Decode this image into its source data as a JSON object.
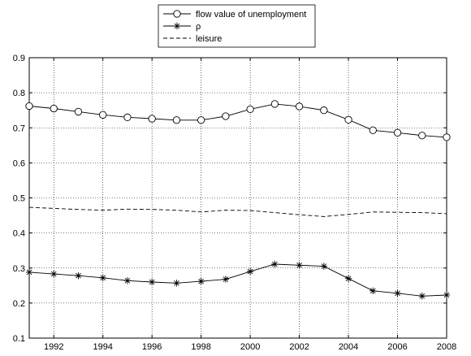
{
  "chart_data": {
    "type": "line",
    "title": "",
    "xlabel": "",
    "ylabel": "",
    "xlim": [
      1991,
      2008
    ],
    "ylim": [
      0.1,
      0.9
    ],
    "x_ticks": [
      1992,
      1994,
      1996,
      1998,
      2000,
      2002,
      2004,
      2006,
      2008
    ],
    "y_ticks": [
      0.1,
      0.2,
      0.3,
      0.4,
      0.5,
      0.6,
      0.7,
      0.8,
      0.9
    ],
    "grid": true,
    "legend_position": "top-center",
    "x": [
      1991,
      1992,
      1993,
      1994,
      1995,
      1996,
      1997,
      1998,
      1999,
      2000,
      2001,
      2002,
      2003,
      2004,
      2005,
      2006,
      2007,
      2008
    ],
    "series": [
      {
        "name": "flow value of unemployment",
        "marker": "circle",
        "style": "solid",
        "values": [
          0.762,
          0.755,
          0.746,
          0.737,
          0.73,
          0.726,
          0.722,
          0.722,
          0.733,
          0.753,
          0.768,
          0.761,
          0.75,
          0.723,
          0.693,
          0.686,
          0.678,
          0.673
        ]
      },
      {
        "name": "ρ",
        "marker": "star",
        "style": "solid",
        "values": [
          0.288,
          0.283,
          0.278,
          0.272,
          0.264,
          0.26,
          0.257,
          0.262,
          0.268,
          0.29,
          0.311,
          0.308,
          0.305,
          0.27,
          0.235,
          0.228,
          0.22,
          0.223
        ]
      },
      {
        "name": "leisure",
        "marker": "none",
        "style": "dashed",
        "values": [
          0.473,
          0.47,
          0.467,
          0.465,
          0.468,
          0.467,
          0.465,
          0.46,
          0.465,
          0.464,
          0.458,
          0.452,
          0.447,
          0.453,
          0.46,
          0.459,
          0.458,
          0.455
        ]
      }
    ],
    "colors": {
      "line": "#000000",
      "grid": "#000000",
      "background": "#ffffff"
    }
  }
}
